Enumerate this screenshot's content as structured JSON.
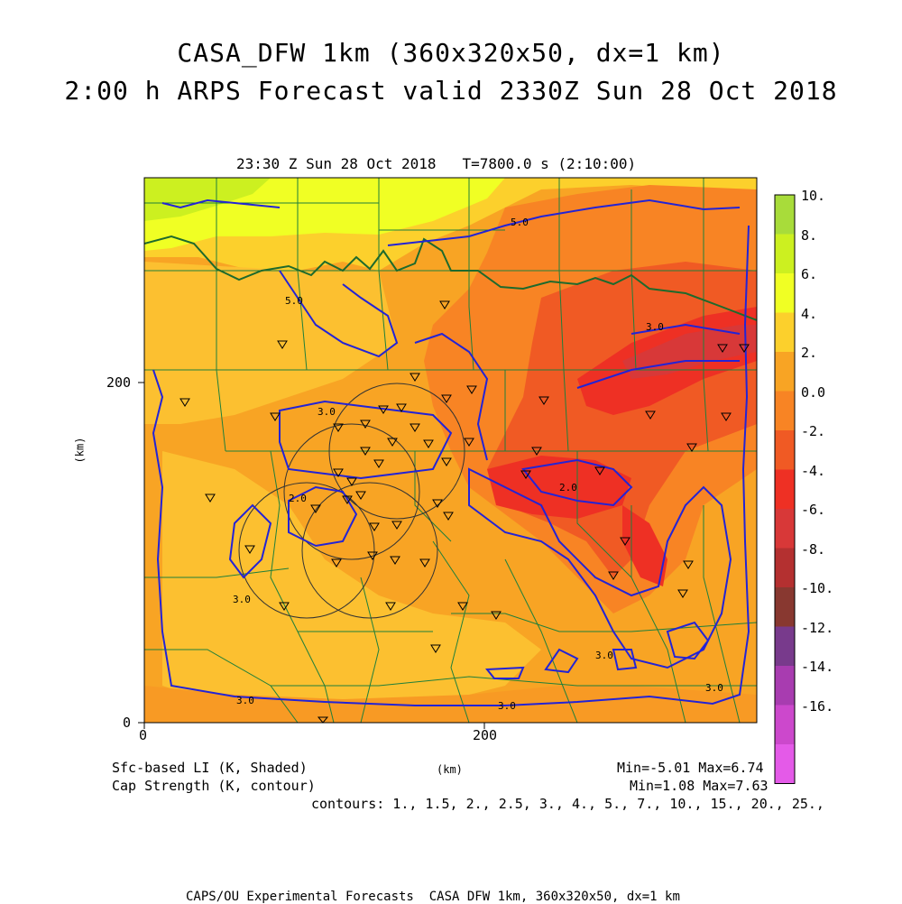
{
  "header": {
    "title_line1": "CASA_DFW 1km (360x320x50, dx=1 km)",
    "title_line2": "2:00 h ARPS Forecast valid 2330Z Sun 28 Oct 2018",
    "valid_time": "23:30 Z Sun 28 Oct 2018   T=7800.0 s (2:10:00)"
  },
  "axes": {
    "x_ticks": [
      "0",
      "200"
    ],
    "y_ticks": [
      "0",
      "200"
    ],
    "x_label": "(km)",
    "y_label": "(km)"
  },
  "colorbar": {
    "labels": [
      "10.",
      "8.",
      "6.",
      "4.",
      "2.",
      "0.0",
      "-2.",
      "-4.",
      "-6.",
      "-8.",
      "-10.",
      "-12.",
      "-14.",
      "-16."
    ],
    "colors": [
      "#a8dc3a",
      "#ccf020",
      "#f0ff24",
      "#fcd02c",
      "#f8a424",
      "#f88424",
      "#f05a24",
      "#ee3024",
      "#d83838",
      "#b43030",
      "#883830",
      "#783a8c",
      "#a83cb0",
      "#cc48cc",
      "#e45ae8"
    ]
  },
  "footer": {
    "shaded_label": "Sfc-based LI (K, Shaded)",
    "contour_label": "Cap Strength (K, contour)",
    "shaded_stats": "Min=-5.01 Max=6.74",
    "contour_stats": "Min=1.08 Max=7.63",
    "contours": "contours: 1., 1.5, 2., 2.5, 3., 4., 5., 7., 10., 15., 20., 25.,",
    "credit": "CAPS/OU Experimental Forecasts  CASA DFW 1km, 360x320x50, dx=1 km"
  },
  "contour_labels": [
    "5.0",
    "5.0",
    "3.0",
    "3.0",
    "2.0",
    "2.0",
    "3.0",
    "3.0",
    "3.0",
    "3.0",
    "3.0"
  ],
  "colors": {
    "contour_blue": "#2323d6",
    "county_green": "#1f7f3a",
    "dryline_green": "#1e6a2c"
  }
}
